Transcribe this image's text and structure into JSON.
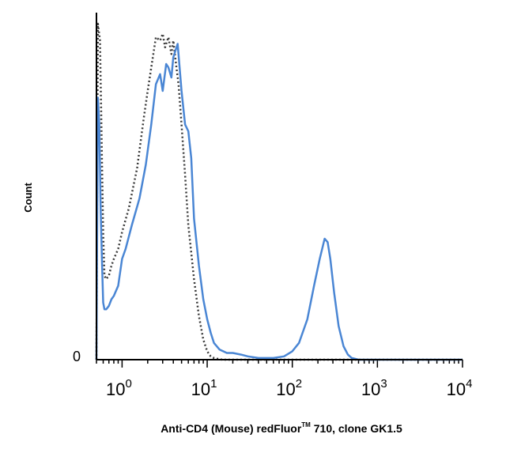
{
  "chart_data": {
    "type": "line",
    "title": "",
    "xlabel": "Anti-CD4 (Mouse) redFluor™ 710, clone GK1.5",
    "xlabel_main": "Anti-CD4 (Mouse) redFluor",
    "xlabel_tm": "TM",
    "xlabel_rest": " 710, clone GK1.5",
    "ylabel": "Count",
    "y_zero_label": "0",
    "x_scale": "log",
    "xlim": [
      0.5,
      10000
    ],
    "ylim": [
      0,
      100
    ],
    "x_ticks": [
      {
        "base": "10",
        "exp": "0"
      },
      {
        "base": "10",
        "exp": "1"
      },
      {
        "base": "10",
        "exp": "2"
      },
      {
        "base": "10",
        "exp": "3"
      },
      {
        "base": "10",
        "exp": "4"
      }
    ],
    "series": [
      {
        "style": "dotted",
        "color": "#3a3a3a",
        "x": [
          0.5,
          0.52,
          0.55,
          0.58,
          0.6,
          0.62,
          0.65,
          0.7,
          0.75,
          0.8,
          0.9,
          1.0,
          1.2,
          1.5,
          1.8,
          2.0,
          2.3,
          2.5,
          2.8,
          3.0,
          3.2,
          3.5,
          3.8,
          4.0,
          4.3,
          4.6,
          5.0,
          5.5,
          6.0,
          7.0,
          8.0,
          9.0,
          10.0,
          11.0,
          12.0,
          13.0,
          15.0,
          20.0,
          30.0,
          50.0,
          100.0,
          300.0,
          1000.0,
          10000.0
        ],
        "y": [
          0,
          100,
          95,
          60,
          38,
          25,
          24,
          25,
          28,
          30,
          33,
          38,
          45,
          57,
          72,
          80,
          90,
          96,
          95,
          97,
          93,
          96,
          91,
          95,
          88,
          82,
          70,
          55,
          40,
          24,
          13,
          6,
          2.5,
          1,
          0.5,
          0.3,
          0,
          0,
          0,
          0,
          0,
          0,
          0,
          0
        ]
      },
      {
        "style": "solid",
        "color": "#4a86d4",
        "x": [
          0.5,
          0.52,
          0.54,
          0.56,
          0.58,
          0.6,
          0.62,
          0.65,
          0.7,
          0.75,
          0.8,
          0.9,
          1.0,
          1.1,
          1.3,
          1.6,
          1.9,
          2.2,
          2.5,
          2.8,
          3.0,
          3.3,
          3.5,
          3.8,
          4.0,
          4.5,
          5.0,
          5.5,
          6.0,
          6.5,
          7.0,
          8.0,
          9.0,
          10.0,
          11.0,
          12.0,
          14.0,
          17.0,
          20.0,
          25.0,
          30.0,
          40.0,
          60.0,
          80.0,
          100.0,
          120.0,
          150.0,
          180.0,
          210.0,
          240.0,
          260.0,
          280.0,
          310.0,
          350.0,
          400.0,
          450.0,
          500.0,
          600.0,
          1000.0,
          10000.0
        ],
        "y": [
          0,
          78,
          70,
          45,
          30,
          17,
          15,
          15,
          16,
          18,
          19,
          22,
          30,
          33,
          40,
          48,
          58,
          70,
          82,
          85,
          80,
          88,
          87,
          84,
          90,
          94,
          80,
          70,
          68,
          60,
          42,
          28,
          18,
          12,
          8,
          5,
          3,
          2,
          2,
          1.5,
          1,
          0.5,
          0.5,
          1,
          2.5,
          5,
          12,
          22,
          30,
          36,
          35,
          30,
          20,
          10,
          4,
          1.5,
          0.5,
          0,
          0,
          0
        ]
      }
    ]
  }
}
